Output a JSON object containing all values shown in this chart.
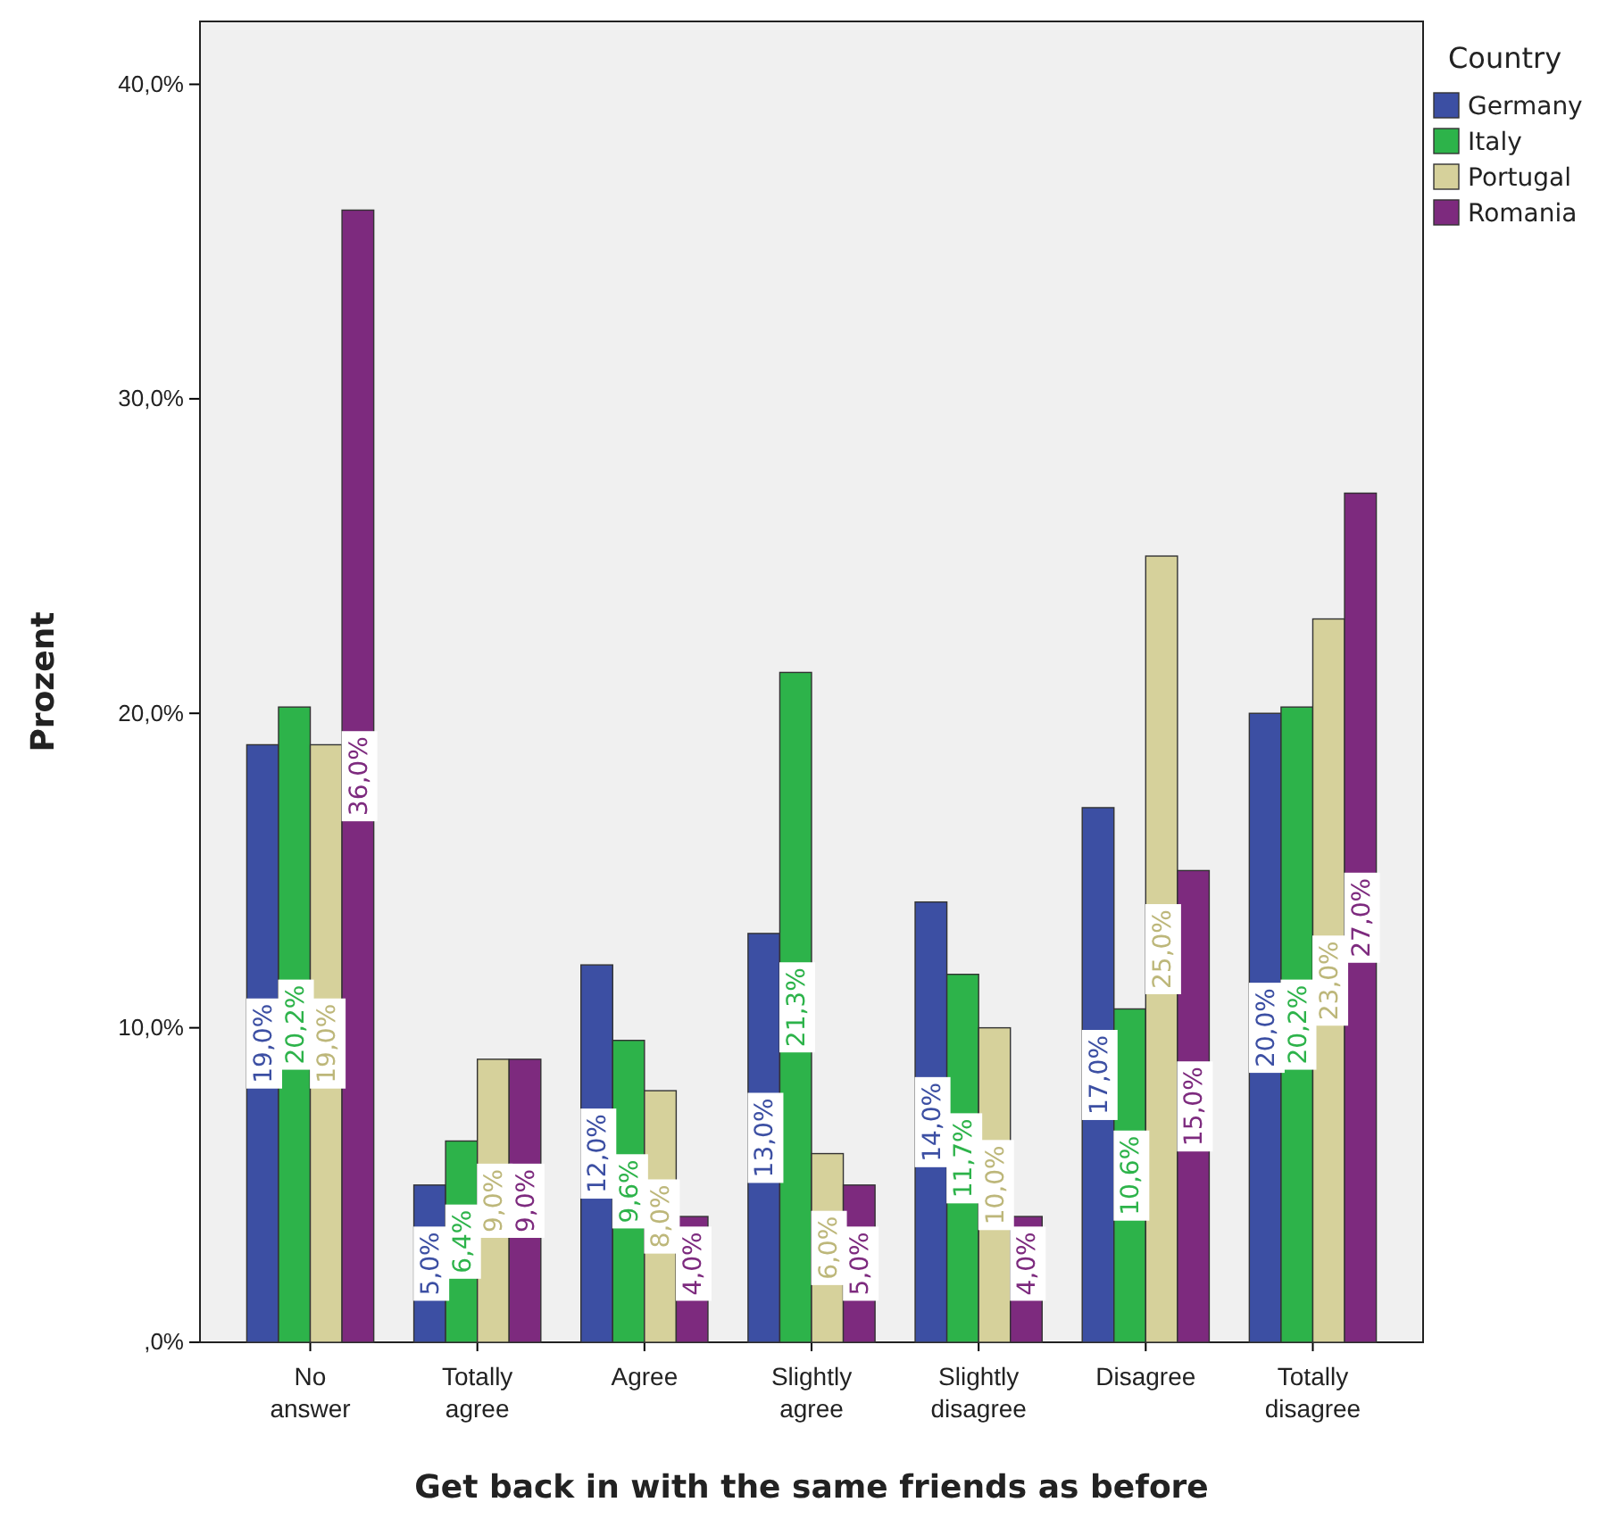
{
  "chart_data": {
    "type": "bar",
    "xlabel": "Get back in with the same friends as before",
    "ylabel": "Prozent",
    "legend_title": "Country",
    "categories": [
      "No answer",
      "Totally agree",
      "Agree",
      "Slightly agree",
      "Slightly disagree",
      "Disagree",
      "Totally disagree"
    ],
    "series": [
      {
        "name": "Germany",
        "color": "#3c4fa3",
        "values": [
          19.0,
          5.0,
          12.0,
          13.0,
          14.0,
          17.0,
          20.0
        ],
        "value_labels": [
          "19,0%",
          "5,0%",
          "12,0%",
          "13,0%",
          "14,0%",
          "17,0%",
          "20,0%"
        ]
      },
      {
        "name": "Italy",
        "color": "#2db34a",
        "values": [
          20.2,
          6.4,
          9.6,
          21.3,
          11.7,
          10.6,
          20.2
        ],
        "value_labels": [
          "20,2%",
          "6,4%",
          "9,6%",
          "21,3%",
          "11,7%",
          "10,6%",
          "20,2%"
        ]
      },
      {
        "name": "Portugal",
        "color": "#d6d19b",
        "values": [
          19.0,
          9.0,
          8.0,
          6.0,
          10.0,
          25.0,
          23.0
        ],
        "value_labels": [
          "19,0%",
          "9,0%",
          "8,0%",
          "6,0%",
          "10,0%",
          "25,0%",
          "23,0%"
        ]
      },
      {
        "name": "Romania",
        "color": "#7d2a7e",
        "values": [
          36.0,
          9.0,
          4.0,
          5.0,
          4.0,
          15.0,
          27.0
        ],
        "value_labels": [
          "36,0%",
          "9,0%",
          "4,0%",
          "5,0%",
          "4,0%",
          "15,0%",
          "27,0%"
        ]
      }
    ],
    "ylim": [
      0,
      42
    ],
    "yticks": [
      {
        "value": 0,
        "label": ",0%"
      },
      {
        "value": 10,
        "label": "10,0%"
      },
      {
        "value": 20,
        "label": "20,0%"
      },
      {
        "value": 30,
        "label": "30,0%"
      },
      {
        "value": 40,
        "label": "40,0%"
      }
    ],
    "legend": "top right"
  }
}
